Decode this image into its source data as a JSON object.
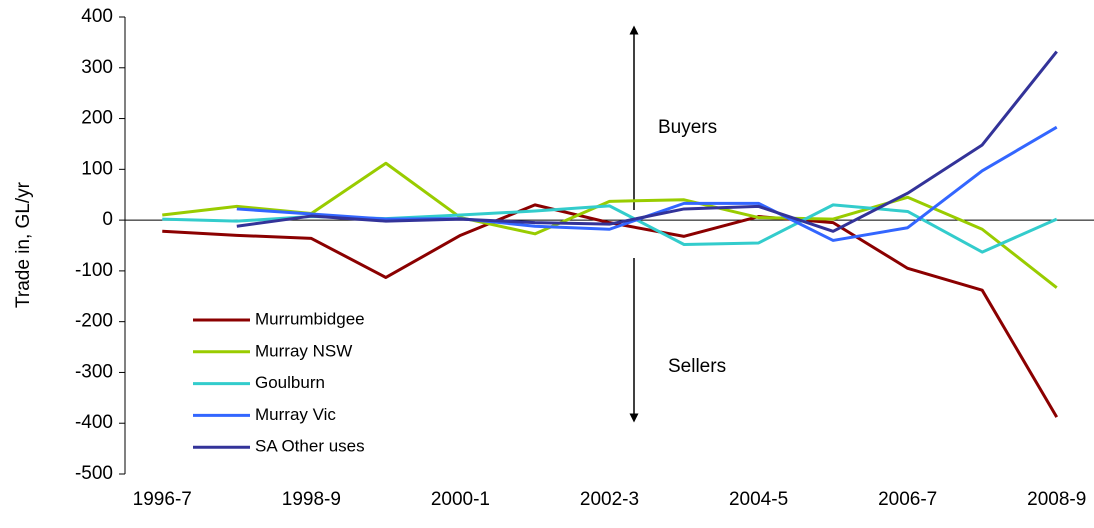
{
  "chart_data": {
    "type": "line",
    "y_label": "Trade in, GL/yr",
    "annotations": [
      "Buyers",
      "Sellers"
    ],
    "categories": [
      "1996-7",
      null,
      "1998-9",
      null,
      "2000-1",
      null,
      "2002-3",
      null,
      "2004-5",
      null,
      "2006-7",
      null,
      "2008-9"
    ],
    "ylim": [
      -500,
      400
    ],
    "yticks": [
      -500,
      -400,
      -300,
      -200,
      -100,
      0,
      100,
      200,
      300,
      400
    ],
    "grid": false,
    "legend": "lower left",
    "series": [
      {
        "name": "Murrumbidgee",
        "color": "#8b0000",
        "values": [
          -22,
          -30,
          -36,
          -113,
          -30,
          30,
          -5,
          -32,
          7,
          -5,
          -95,
          -138,
          -388
        ]
      },
      {
        "name": "Murray NSW",
        "color": "#99cc00",
        "values": [
          10,
          27,
          13,
          112,
          5,
          -27,
          37,
          40,
          5,
          2,
          45,
          -18,
          -133
        ]
      },
      {
        "name": "Goulburn",
        "color": "#33cccc",
        "values": [
          2,
          -2,
          7,
          3,
          10,
          18,
          28,
          -48,
          -45,
          30,
          17,
          -63,
          2
        ]
      },
      {
        "name": "Murray Vic",
        "color": "#3366ff",
        "values": [
          null,
          22,
          12,
          2,
          3,
          -12,
          -18,
          33,
          33,
          -40,
          -15,
          97,
          183
        ]
      },
      {
        "name": "SA Other uses",
        "color": "#333399",
        "values": [
          null,
          -12,
          8,
          -2,
          2,
          -5,
          -8,
          22,
          27,
          -22,
          53,
          148,
          332
        ]
      }
    ]
  }
}
